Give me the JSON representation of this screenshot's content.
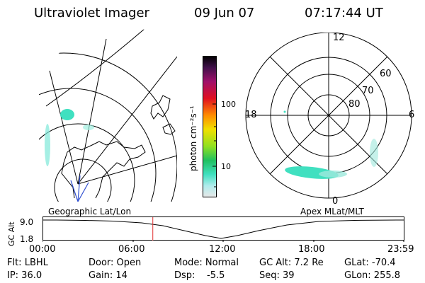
{
  "header": {
    "title": "Ultraviolet Imager",
    "date": "09 Jun 07",
    "time": "07:17:44 UT"
  },
  "colorbar": {
    "unit_label": "photon cm⁻²s⁻¹",
    "tick_100": "100",
    "tick_10": "10"
  },
  "polar": {
    "label_12": "12",
    "label_18": "18",
    "label_6": "6",
    "label_0": "0",
    "label_60": "60",
    "label_70": "70",
    "label_80": "80"
  },
  "map_labels": {
    "geographic": "Geographic Lat/Lon",
    "apex": "Apex MLat/MLT"
  },
  "timeline": {
    "ylabel": "GC Alt",
    "y_high": "9.0",
    "y_low": "1.8",
    "ticks": [
      "00:00",
      "06:00",
      "12:00",
      "18:00",
      "23:59"
    ],
    "current_time_fraction": 0.304
  },
  "info": {
    "flt": "Flt: LBHL",
    "door": "Door: Open",
    "mode": "Mode: Normal",
    "gc_alt": "GC Alt: 7.2 Re",
    "glat": "GLat: -70.4",
    "ip": "IP: 36.0",
    "gain": "Gain: 14",
    "dsp_label": "Dsp:",
    "dsp_value": "-5.5",
    "seq": "Seq: 39",
    "glon": "GLon: 255.8"
  },
  "colors": {
    "aurora": "#40e0c0",
    "marker": "#e03030",
    "cbar_top": "#000000",
    "cbar_bottom": "#e0e0e0"
  }
}
